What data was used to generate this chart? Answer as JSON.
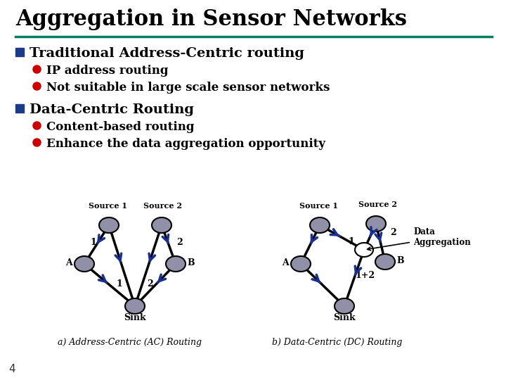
{
  "title": "Aggregation in Sensor Networks",
  "bg_color": "#ffffff",
  "title_color": "#000000",
  "title_fontsize": 22,
  "line_color": "#008060",
  "bullet1_text": "Traditional Address-Centric routing",
  "sub1a": "IP address routing",
  "sub1b": "Not suitable in large scale sensor networks",
  "bullet2_text": "Data-Centric Routing",
  "sub2a": "Content-based routing",
  "sub2b": "Enhance the data aggregation opportunity",
  "square_bullet_color": "#1a3a8a",
  "round_bullet_color": "#cc0000",
  "caption_a": "a) Address-Centric (AC) Routing",
  "caption_b": "b) Data-Centric (DC) Routing",
  "node_color": "#9090a8",
  "arrow_color": "#1a3090",
  "edge_color": "#000000",
  "page_number": "4",
  "sink_label": "Sink",
  "data_aggregation_label": "Data\nAggregation"
}
